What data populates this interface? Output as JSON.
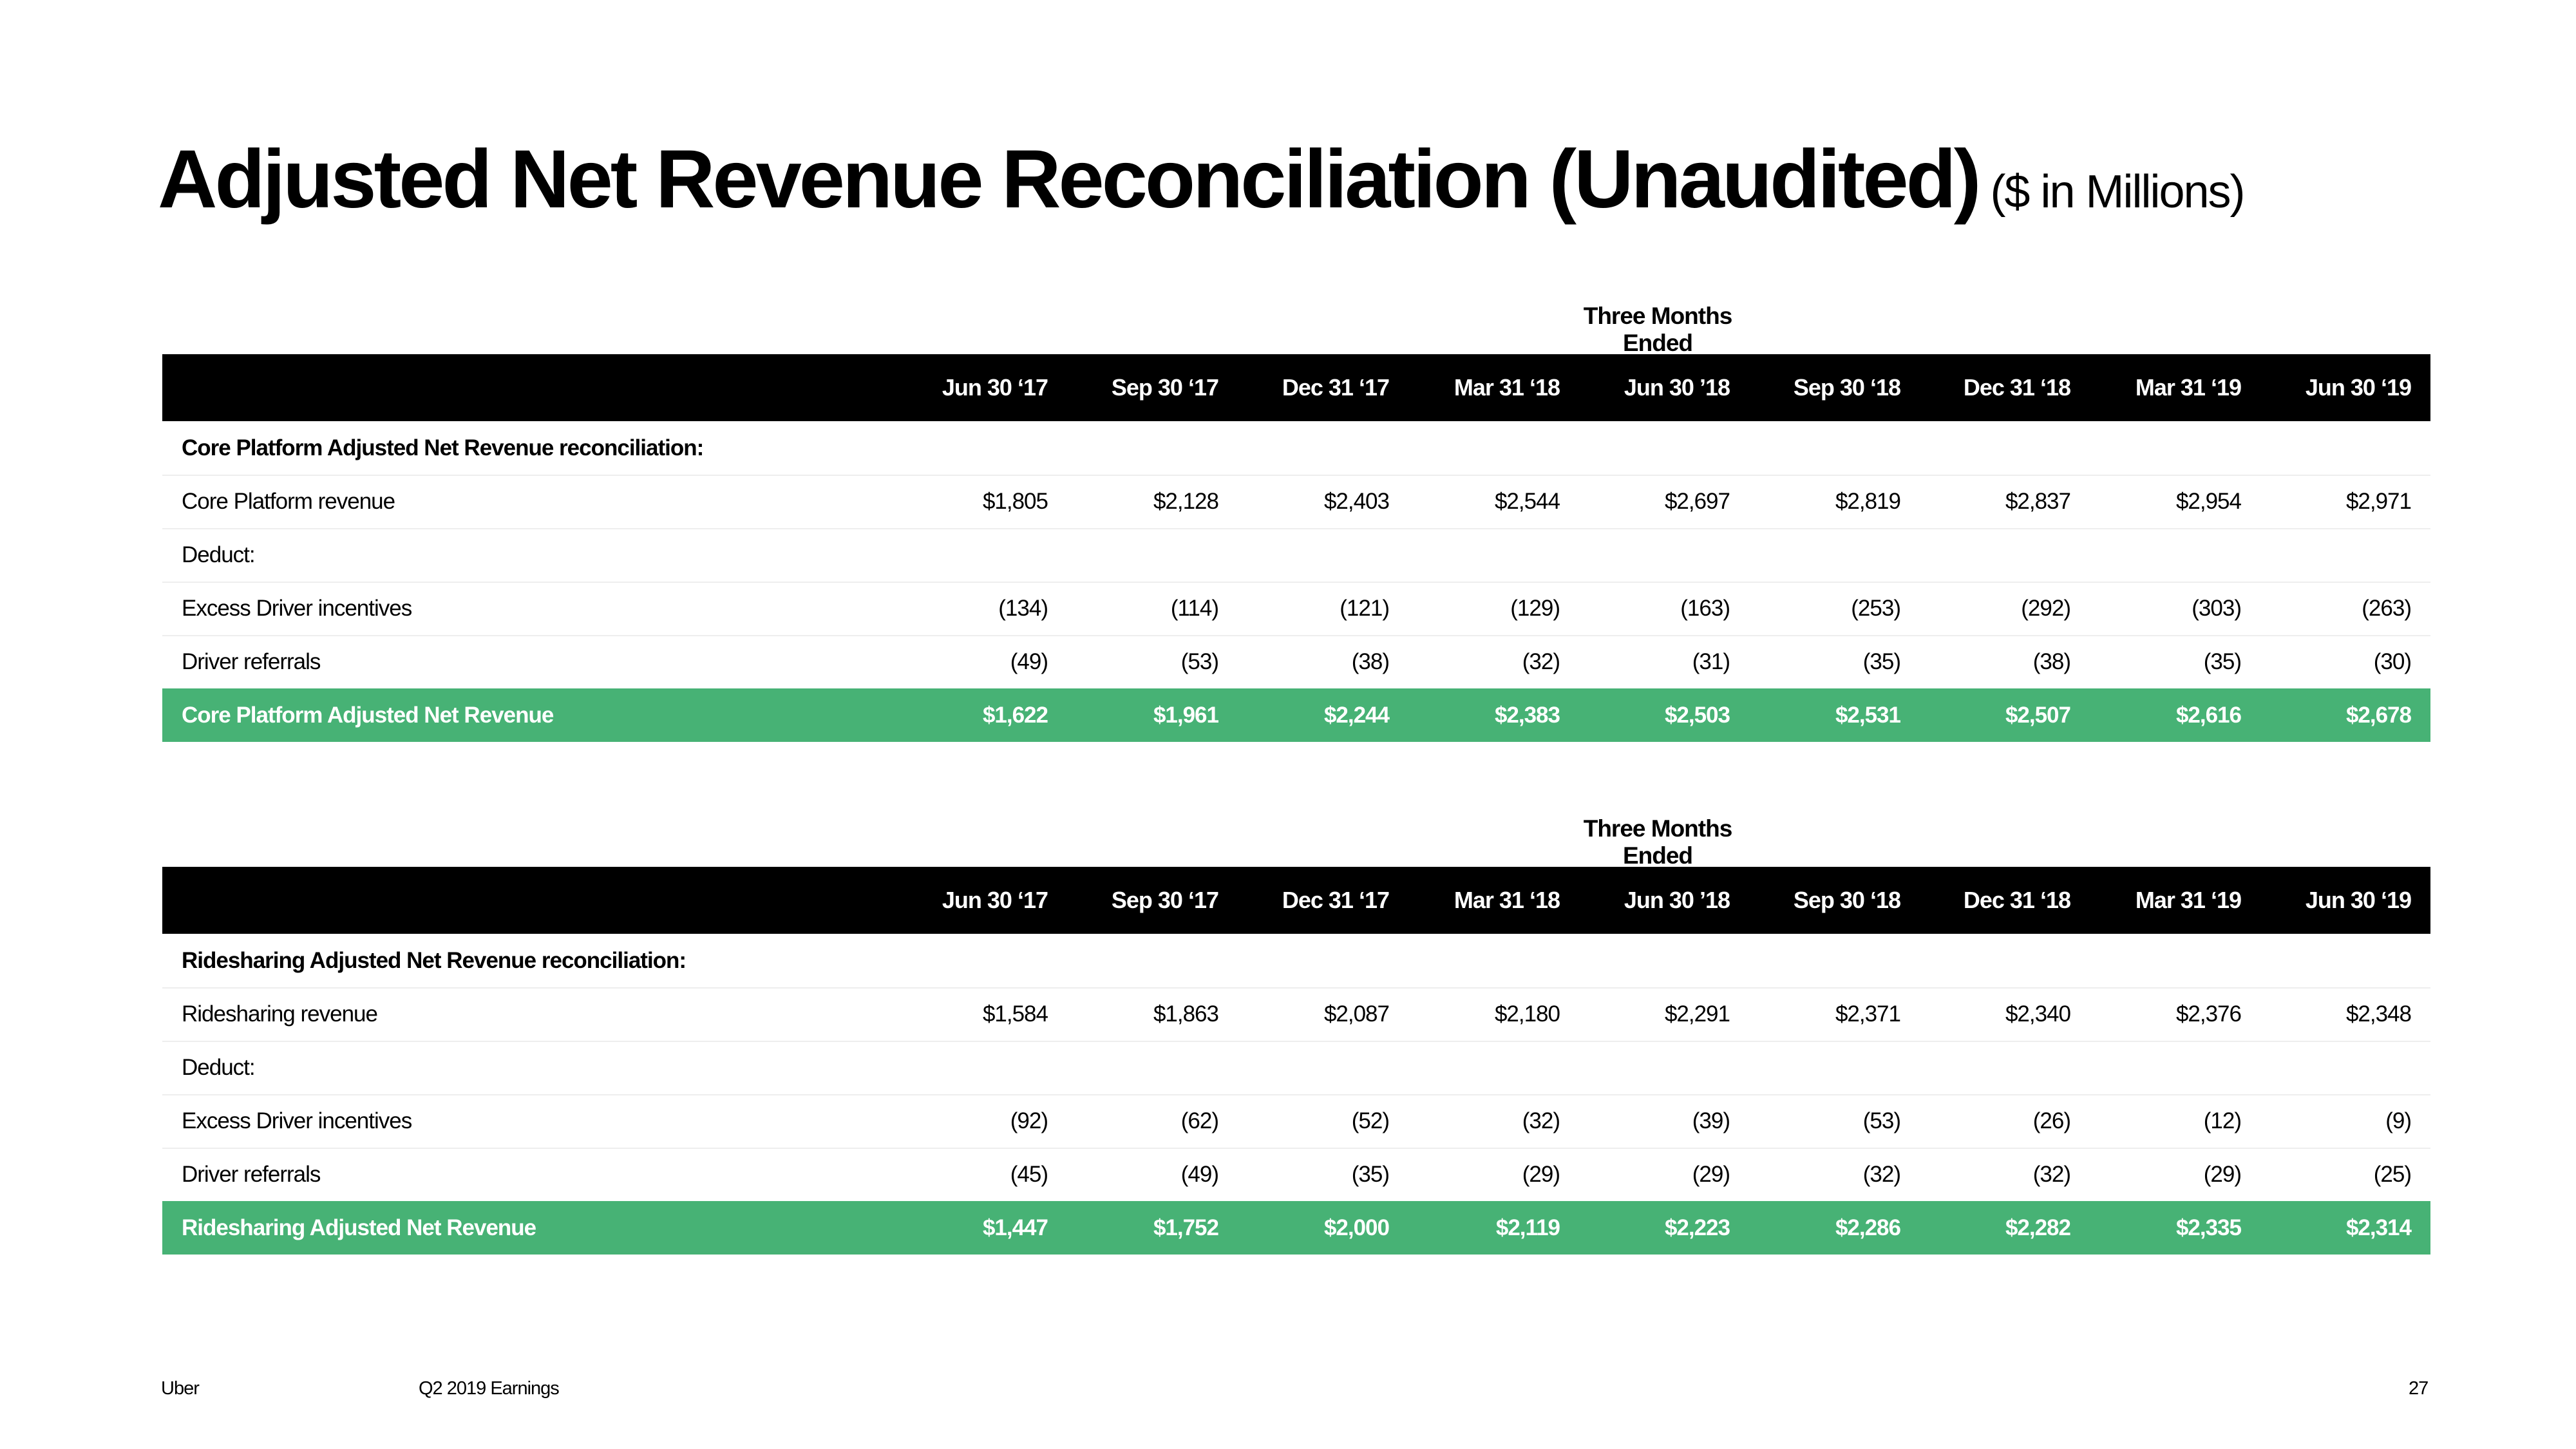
{
  "title": "Adjusted Net Revenue Reconciliation (Unaudited)",
  "subtitle": "($ in Millions)",
  "footer": {
    "brand": "Uber",
    "report": "Q2 2019 Earnings",
    "page": "27"
  },
  "periods": [
    "Jun 30 ‘17",
    "Sep 30 ‘17",
    "Dec 31 ‘17",
    "Mar 31 ‘18",
    "Jun 30 ’18",
    "Sep 30 ‘18",
    "Dec 31 ‘18",
    "Mar 31 ‘19",
    "Jun 30 ‘19"
  ],
  "tables": [
    {
      "caption": "Three Months Ended",
      "section_label": "Core Platform Adjusted Net Revenue reconciliation:",
      "rows": [
        {
          "label": "Core Platform revenue",
          "values": [
            "$1,805",
            "$2,128",
            "$2,403",
            "$2,544",
            "$2,697",
            "$2,819",
            "$2,837",
            "$2,954",
            "$2,971"
          ]
        },
        {
          "label": "Deduct:",
          "values": [
            "",
            "",
            "",
            "",
            "",
            "",
            "",
            "",
            ""
          ]
        },
        {
          "label": "Excess Driver incentives",
          "values": [
            "(134)",
            "(114)",
            "(121)",
            "(129)",
            "(163)",
            "(253)",
            "(292)",
            "(303)",
            "(263)"
          ]
        },
        {
          "label": "Driver referrals",
          "values": [
            "(49)",
            "(53)",
            "(38)",
            "(32)",
            "(31)",
            "(35)",
            "(38)",
            "(35)",
            "(30)"
          ]
        }
      ],
      "total": {
        "label": "Core Platform Adjusted Net Revenue",
        "values": [
          "$1,622",
          "$1,961",
          "$2,244",
          "$2,383",
          "$2,503",
          "$2,531",
          "$2,507",
          "$2,616",
          "$2,678"
        ]
      }
    },
    {
      "caption": "Three Months Ended",
      "section_label": "Ridesharing Adjusted Net Revenue reconciliation:",
      "rows": [
        {
          "label": "Ridesharing revenue",
          "values": [
            "$1,584",
            "$1,863",
            "$2,087",
            "$2,180",
            "$2,291",
            "$2,371",
            "$2,340",
            "$2,376",
            "$2,348"
          ]
        },
        {
          "label": "Deduct:",
          "values": [
            "",
            "",
            "",
            "",
            "",
            "",
            "",
            "",
            ""
          ]
        },
        {
          "label": "Excess Driver incentives",
          "values": [
            "(92)",
            "(62)",
            "(52)",
            "(32)",
            "(39)",
            "(53)",
            "(26)",
            "(12)",
            "(9)"
          ]
        },
        {
          "label": "Driver referrals",
          "values": [
            "(45)",
            "(49)",
            "(35)",
            "(29)",
            "(29)",
            "(32)",
            "(32)",
            "(29)",
            "(25)"
          ]
        }
      ],
      "total": {
        "label": "Ridesharing Adjusted Net Revenue",
        "values": [
          "$1,447",
          "$1,752",
          "$2,000",
          "$2,119",
          "$2,223",
          "$2,286",
          "$2,282",
          "$2,335",
          "$2,314"
        ]
      }
    }
  ],
  "colors": {
    "header_bg": "#000000",
    "total_bg": "#47b275"
  }
}
